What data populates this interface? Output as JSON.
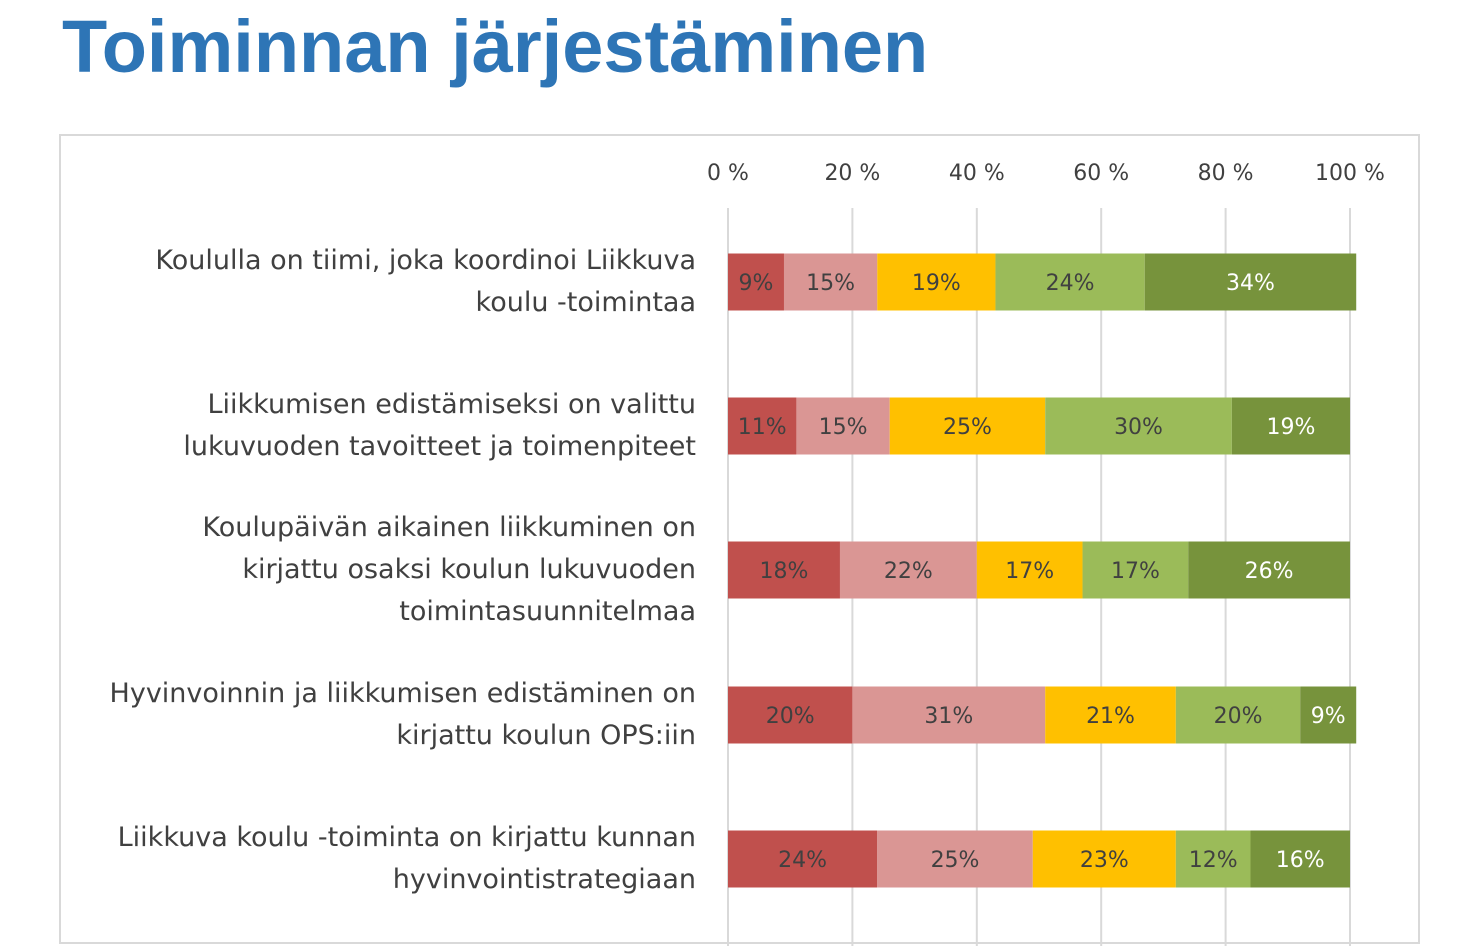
{
  "page": {
    "title": "Toiminnan järjestäminen"
  },
  "chart_data": {
    "type": "bar",
    "orientation": "horizontal",
    "stacked": "percent",
    "title": "",
    "xlabel": "",
    "ylabel": "",
    "xlim": [
      0,
      100
    ],
    "x_ticks": [
      "0 %",
      "20 %",
      "40 %",
      "60 %",
      "80 %",
      "100 %"
    ],
    "x_axis_position": "top",
    "grid": true,
    "legend": "none",
    "categories": [
      "Koululla on tiimi, joka koordinoi Liikkuva koulu -toimintaa",
      "Liikkumisen edistämiseksi on valittu lukuvuoden tavoitteet ja toimenpiteet",
      "Koulupäivän aikainen liikkuminen on kirjattu osaksi koulun lukuvuoden toimintasuunnitelmaa",
      "Hyvinvoinnin ja liikkumisen edistäminen on kirjattu koulun OPS:iin",
      "Liikkuva koulu -toiminta on kirjattu kunnan hyvinvointistrategiaan"
    ],
    "series": [
      {
        "color": "#c0504d",
        "values": [
          9,
          11,
          18,
          20,
          24
        ]
      },
      {
        "color": "#da9694",
        "values": [
          15,
          15,
          22,
          31,
          25
        ]
      },
      {
        "color": "#ffc000",
        "values": [
          19,
          25,
          17,
          21,
          23
        ]
      },
      {
        "color": "#9bbb59",
        "values": [
          24,
          30,
          17,
          20,
          12
        ]
      },
      {
        "color": "#77933c",
        "values": [
          34,
          19,
          26,
          9,
          16
        ]
      }
    ],
    "data_label_suffix": "%",
    "gridline_color": "#d9d9d9",
    "label_color": "#404040",
    "last_series_label_color": "#ffffff"
  }
}
